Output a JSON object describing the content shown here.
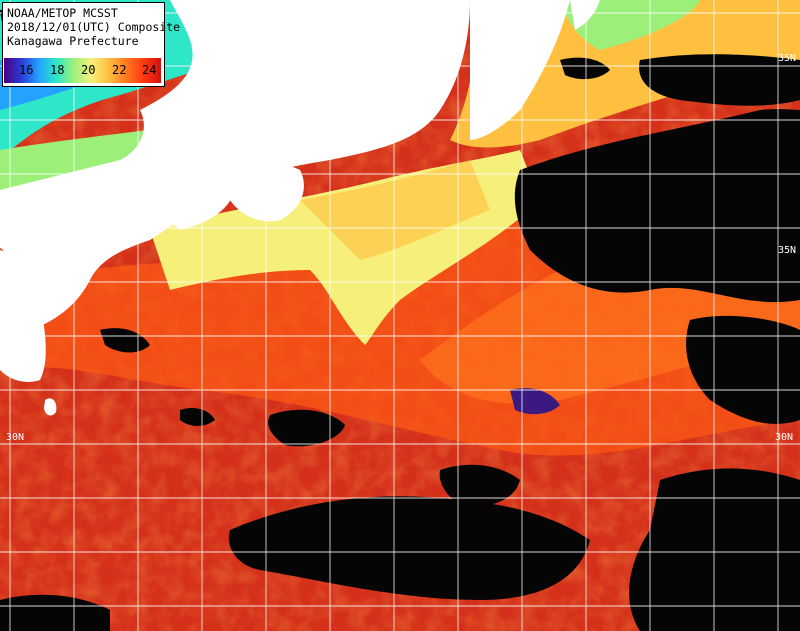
{
  "title": {
    "line1": "NOAA/METOP MCSST",
    "line2": "2018/12/01(UTC) Composite",
    "line3": "Kanagawa Prefecture"
  },
  "colorbar": {
    "ticks": [
      "16",
      "18",
      "20",
      "22",
      "24"
    ],
    "colors": [
      "#4b0082",
      "#2a3bd6",
      "#23a3ff",
      "#2ee6c8",
      "#9cf07a",
      "#f6f07a",
      "#ffc040",
      "#ff7a1e",
      "#ff3a10",
      "#d21010"
    ]
  },
  "grid_labels": {
    "lat_30_left": "30N",
    "lat_30_right": "30N",
    "lat_35_right_top": "35N",
    "lat_35_right_mid": "35N"
  },
  "colors": {
    "warm_water": "#e03a14",
    "hot_water": "#c4271a",
    "cool_water": "#9cf07a",
    "cold_water": "#23a3ff",
    "land": "#ffffff",
    "cloud": "#000000",
    "grid": "#ffffff"
  }
}
